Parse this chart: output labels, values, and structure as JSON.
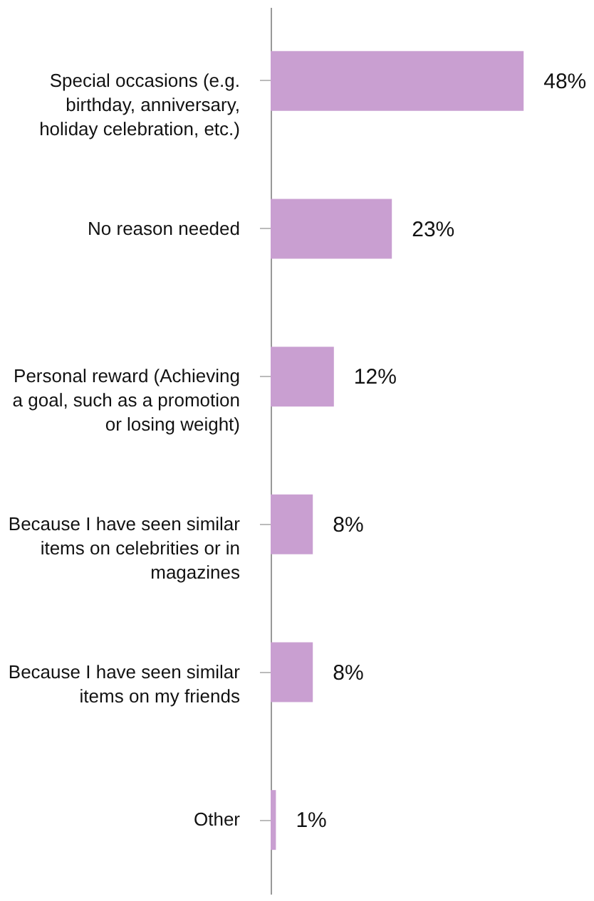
{
  "chart_data": {
    "type": "bar",
    "orientation": "horizontal",
    "categories": [
      "Special occasions (e.g. birthday, anniversary, holiday celebration, etc.)",
      "No reason needed",
      "Personal reward (Achieving a goal, such as a promotion or losing weight)",
      "Because I have seen similar items on celebrities or in magazines",
      "Because I have seen similar items on my friends",
      "Other"
    ],
    "values": [
      48,
      23,
      12,
      8,
      8,
      1
    ],
    "value_labels": [
      "48%",
      "23%",
      "12%",
      "8%",
      "8%",
      "1%"
    ],
    "color": "#c99fd1"
  }
}
